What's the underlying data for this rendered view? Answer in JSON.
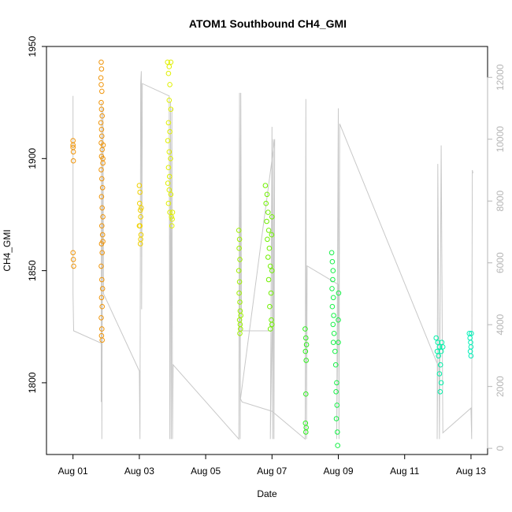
{
  "chart_data": {
    "type": "scatter",
    "title": "ATOM1 Southbound CH4_GMI",
    "xlabel": "Date",
    "ylabel": "CH4_GMI",
    "x_ticks": [
      "Aug 01",
      "Aug 03",
      "Aug 05",
      "Aug 07",
      "Aug 09",
      "Aug 11",
      "Aug 13"
    ],
    "x_tick_days": [
      1,
      3,
      5,
      7,
      9,
      11,
      13
    ],
    "xlim_days": [
      0.2,
      13.5
    ],
    "y_ticks": [
      1800,
      1850,
      1900,
      1950
    ],
    "ylim": [
      1768,
      1950
    ],
    "y2_ticks": [
      0,
      2000,
      4000,
      6000,
      8000,
      10000,
      12000
    ],
    "y2lim": [
      -200,
      13000
    ],
    "grid": false,
    "colors": {
      "altitude_line": "#c8c8c8",
      "scatter_gradient": [
        "#f28c00",
        "#f5a800",
        "#f0d000",
        "#e8f000",
        "#aaf000",
        "#55f000",
        "#16ef20",
        "#00ef78",
        "#00efb0"
      ]
    },
    "ch4_series": [
      {
        "flight": 1,
        "color": "#f0950a",
        "points": [
          [
            1.0,
            1908
          ],
          [
            1.0,
            1906
          ],
          [
            1.0,
            1905
          ],
          [
            1.01,
            1903
          ],
          [
            1.01,
            1899
          ],
          [
            1.0,
            1858
          ],
          [
            1.01,
            1855
          ],
          [
            1.02,
            1852
          ],
          [
            1.85,
            1943
          ],
          [
            1.86,
            1940
          ],
          [
            1.84,
            1936
          ],
          [
            1.85,
            1933
          ],
          [
            1.87,
            1930
          ],
          [
            1.85,
            1925
          ],
          [
            1.86,
            1922
          ],
          [
            1.88,
            1919
          ],
          [
            1.84,
            1916
          ],
          [
            1.86,
            1913
          ],
          [
            1.87,
            1910
          ],
          [
            1.85,
            1907
          ],
          [
            1.88,
            1904
          ],
          [
            1.86,
            1901
          ],
          [
            1.9,
            1898
          ],
          [
            1.85,
            1895
          ],
          [
            1.87,
            1891
          ],
          [
            1.89,
            1887
          ],
          [
            1.86,
            1883
          ],
          [
            1.88,
            1878
          ],
          [
            1.9,
            1874
          ],
          [
            1.87,
            1870
          ],
          [
            1.89,
            1866
          ],
          [
            1.86,
            1862
          ],
          [
            1.88,
            1858
          ],
          [
            1.85,
            1852
          ],
          [
            1.87,
            1846
          ],
          [
            1.89,
            1842
          ],
          [
            1.86,
            1838
          ],
          [
            1.88,
            1834
          ],
          [
            1.85,
            1829
          ],
          [
            1.87,
            1824
          ],
          [
            1.86,
            1821
          ],
          [
            1.88,
            1819
          ],
          [
            1.9,
            1863
          ],
          [
            1.9,
            1900
          ],
          [
            1.91,
            1906
          ]
        ]
      },
      {
        "flight": 2,
        "color": "#f0d000",
        "points": [
          [
            3.0,
            1888
          ],
          [
            3.02,
            1885
          ],
          [
            3.01,
            1880
          ],
          [
            3.03,
            1877
          ],
          [
            3.04,
            1874
          ],
          [
            3.02,
            1870
          ],
          [
            3.05,
            1866
          ],
          [
            3.03,
            1862
          ],
          [
            3.06,
            1878
          ],
          [
            3.0,
            1870
          ],
          [
            3.04,
            1864
          ]
        ]
      },
      {
        "flight": 3,
        "color": "#e0f000",
        "points": [
          [
            3.85,
            1943
          ],
          [
            3.9,
            1941
          ],
          [
            3.95,
            1943
          ],
          [
            3.88,
            1938
          ],
          [
            3.92,
            1933
          ],
          [
            3.9,
            1926
          ],
          [
            3.95,
            1922
          ],
          [
            3.88,
            1916
          ],
          [
            3.92,
            1912
          ],
          [
            3.86,
            1908
          ],
          [
            3.9,
            1903
          ],
          [
            3.94,
            1900
          ],
          [
            3.88,
            1896
          ],
          [
            3.91,
            1892
          ],
          [
            3.86,
            1889
          ],
          [
            3.9,
            1886
          ],
          [
            3.95,
            1884
          ],
          [
            3.88,
            1880
          ],
          [
            3.92,
            1876
          ],
          [
            3.97,
            1874
          ],
          [
            3.98,
            1870
          ],
          [
            3.99,
            1873
          ],
          [
            4.0,
            1876
          ]
        ]
      },
      {
        "flight": 4,
        "color": "#9ef000",
        "points": [
          [
            6.0,
            1868
          ],
          [
            6.02,
            1864
          ],
          [
            6.01,
            1860
          ],
          [
            6.03,
            1855
          ],
          [
            6.0,
            1850
          ],
          [
            6.02,
            1845
          ],
          [
            6.01,
            1840
          ],
          [
            6.03,
            1836
          ],
          [
            6.04,
            1832
          ],
          [
            6.02,
            1828
          ],
          [
            6.05,
            1824
          ],
          [
            6.03,
            1822
          ],
          [
            6.06,
            1830
          ],
          [
            6.04,
            1826
          ]
        ]
      },
      {
        "flight": 5,
        "color": "#70f000",
        "points": [
          [
            6.8,
            1888
          ],
          [
            6.85,
            1884
          ],
          [
            6.82,
            1880
          ],
          [
            6.88,
            1876
          ],
          [
            6.84,
            1872
          ],
          [
            6.9,
            1868
          ],
          [
            6.86,
            1864
          ],
          [
            6.92,
            1860
          ],
          [
            6.88,
            1856
          ],
          [
            6.95,
            1852
          ],
          [
            6.9,
            1846
          ],
          [
            6.97,
            1840
          ],
          [
            6.93,
            1834
          ],
          [
            6.98,
            1828
          ],
          [
            6.95,
            1824
          ],
          [
            7.0,
            1826
          ],
          [
            7.0,
            1850
          ],
          [
            6.99,
            1866
          ],
          [
            7.0,
            1874
          ]
        ]
      },
      {
        "flight": 6,
        "color": "#30f020",
        "points": [
          [
            8.0,
            1824
          ],
          [
            8.02,
            1820
          ],
          [
            8.04,
            1817
          ],
          [
            8.01,
            1814
          ],
          [
            8.03,
            1810
          ],
          [
            8.02,
            1795
          ],
          [
            8.01,
            1782
          ],
          [
            8.03,
            1780
          ],
          [
            8.02,
            1778
          ]
        ]
      },
      {
        "flight": 7,
        "color": "#18f048",
        "points": [
          [
            8.8,
            1858
          ],
          [
            8.82,
            1854
          ],
          [
            8.84,
            1850
          ],
          [
            8.83,
            1846
          ],
          [
            8.81,
            1842
          ],
          [
            8.85,
            1838
          ],
          [
            8.82,
            1834
          ],
          [
            8.86,
            1830
          ],
          [
            8.84,
            1826
          ],
          [
            8.87,
            1822
          ],
          [
            8.85,
            1818
          ],
          [
            8.9,
            1814
          ],
          [
            8.92,
            1808
          ],
          [
            8.95,
            1800
          ],
          [
            8.93,
            1796
          ],
          [
            8.96,
            1790
          ],
          [
            8.94,
            1784
          ],
          [
            8.97,
            1778
          ],
          [
            8.98,
            1772
          ],
          [
            9.0,
            1818
          ],
          [
            9.0,
            1828
          ],
          [
            9.01,
            1840
          ]
        ]
      },
      {
        "flight": 8,
        "color": "#00f0a8",
        "points": [
          [
            11.95,
            1820
          ],
          [
            12.0,
            1818
          ],
          [
            12.05,
            1816
          ],
          [
            11.98,
            1814
          ],
          [
            12.02,
            1812
          ],
          [
            12.08,
            1808
          ],
          [
            12.05,
            1804
          ],
          [
            12.1,
            1800
          ],
          [
            12.07,
            1796
          ],
          [
            12.12,
            1818
          ],
          [
            12.15,
            1816
          ],
          [
            12.1,
            1814
          ]
        ]
      },
      {
        "flight": 9,
        "color": "#00f0b8",
        "points": [
          [
            12.95,
            1822
          ],
          [
            12.97,
            1820
          ],
          [
            12.99,
            1818
          ],
          [
            13.0,
            1816
          ],
          [
            12.98,
            1814
          ],
          [
            13.0,
            1812
          ],
          [
            13.01,
            1822
          ]
        ]
      }
    ],
    "altitude_track": [
      [
        1.0,
        11400
      ],
      [
        1.0,
        5000
      ],
      [
        1.02,
        3800
      ],
      [
        1.85,
        3400
      ],
      [
        1.85,
        1500
      ],
      [
        1.86,
        11200
      ],
      [
        1.87,
        300
      ],
      [
        1.9,
        11000
      ],
      [
        1.92,
        5000
      ],
      [
        3.0,
        2500
      ],
      [
        3.02,
        300
      ],
      [
        3.04,
        11800
      ],
      [
        3.06,
        12200
      ],
      [
        3.07,
        4500
      ],
      [
        3.09,
        11800
      ],
      [
        3.9,
        11400
      ],
      [
        3.92,
        300
      ],
      [
        3.94,
        11200
      ],
      [
        3.96,
        300
      ],
      [
        3.98,
        11000
      ],
      [
        4.0,
        300
      ],
      [
        4.02,
        2700
      ],
      [
        6.0,
        300
      ],
      [
        6.02,
        11500
      ],
      [
        6.04,
        300
      ],
      [
        6.06,
        11500
      ],
      [
        6.08,
        3800
      ],
      [
        7.0,
        3800
      ],
      [
        6.95,
        300
      ],
      [
        7.0,
        10400
      ],
      [
        7.02,
        300
      ],
      [
        7.04,
        10000
      ],
      [
        7.06,
        300
      ],
      [
        7.08,
        10000
      ],
      [
        6.05,
        1600
      ],
      [
        6.1,
        1500
      ],
      [
        7.0,
        1200
      ],
      [
        8.0,
        300
      ],
      [
        8.02,
        11300
      ],
      [
        8.04,
        300
      ],
      [
        8.06,
        5900
      ],
      [
        9.0,
        5300
      ],
      [
        8.95,
        300
      ],
      [
        9.0,
        11000
      ],
      [
        9.02,
        300
      ],
      [
        9.04,
        10500
      ],
      [
        12.0,
        2700
      ],
      [
        11.98,
        300
      ],
      [
        12.0,
        9200
      ],
      [
        12.05,
        300
      ],
      [
        12.1,
        9800
      ],
      [
        12.15,
        500
      ],
      [
        13.0,
        1300
      ],
      [
        13.02,
        300
      ],
      [
        13.04,
        9000
      ],
      [
        13.06,
        8900
      ]
    ]
  }
}
